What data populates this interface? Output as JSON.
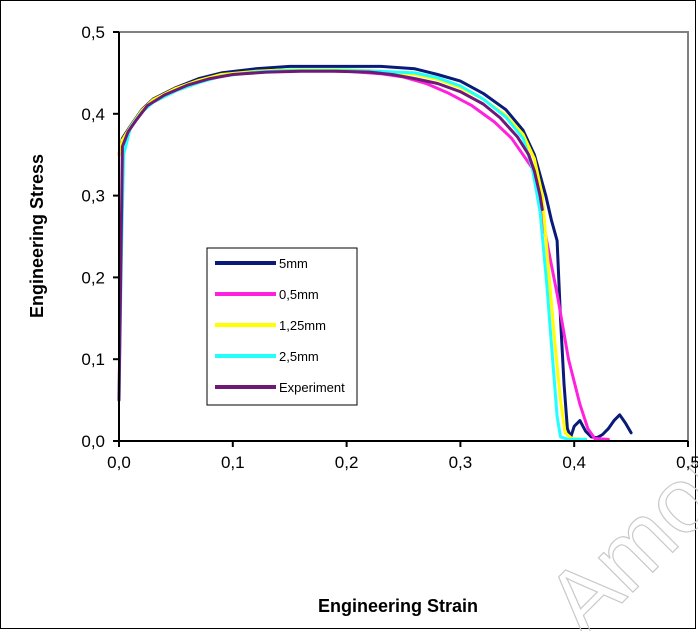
{
  "chart_data": {
    "type": "line",
    "xlabel": "Engineering Strain",
    "ylabel": "Engineering Stress",
    "xlim": [
      0,
      0.5
    ],
    "ylim": [
      0,
      0.5
    ],
    "x_ticks": [
      "0,0",
      "0,1",
      "0,2",
      "0,3",
      "0,4",
      "0,5"
    ],
    "y_ticks": [
      "0,0",
      "0,1",
      "0,2",
      "0,3",
      "0,4",
      "0,5"
    ],
    "grid": false,
    "legend_position": "center-left",
    "watermark": "Amore",
    "series": [
      {
        "name": "5mm",
        "color": "#0a1a78",
        "points": [
          [
            0,
            0.35
          ],
          [
            0.003,
            0.37
          ],
          [
            0.01,
            0.385
          ],
          [
            0.02,
            0.405
          ],
          [
            0.03,
            0.418
          ],
          [
            0.05,
            0.432
          ],
          [
            0.07,
            0.443
          ],
          [
            0.09,
            0.45
          ],
          [
            0.12,
            0.455
          ],
          [
            0.15,
            0.458
          ],
          [
            0.2,
            0.458
          ],
          [
            0.23,
            0.458
          ],
          [
            0.26,
            0.455
          ],
          [
            0.28,
            0.448
          ],
          [
            0.3,
            0.44
          ],
          [
            0.32,
            0.425
          ],
          [
            0.34,
            0.405
          ],
          [
            0.355,
            0.38
          ],
          [
            0.365,
            0.35
          ],
          [
            0.375,
            0.3
          ],
          [
            0.38,
            0.27
          ],
          [
            0.385,
            0.245
          ],
          [
            0.388,
            0.15
          ],
          [
            0.391,
            0.07
          ],
          [
            0.394,
            0.015
          ],
          [
            0.397,
            0.005
          ],
          [
            0.4,
            0.018
          ],
          [
            0.405,
            0.025
          ],
          [
            0.41,
            0.012
          ],
          [
            0.415,
            0.005
          ],
          [
            0.42,
            0.004
          ],
          [
            0.425,
            0.008
          ],
          [
            0.43,
            0.015
          ],
          [
            0.435,
            0.025
          ],
          [
            0.44,
            0.032
          ],
          [
            0.445,
            0.022
          ],
          [
            0.45,
            0.01
          ]
        ]
      },
      {
        "name": "0,5mm",
        "color": "#ff22dd",
        "points": [
          [
            0,
            0.35
          ],
          [
            0.003,
            0.368
          ],
          [
            0.01,
            0.383
          ],
          [
            0.02,
            0.403
          ],
          [
            0.03,
            0.416
          ],
          [
            0.05,
            0.43
          ],
          [
            0.07,
            0.44
          ],
          [
            0.09,
            0.447
          ],
          [
            0.12,
            0.451
          ],
          [
            0.15,
            0.453
          ],
          [
            0.2,
            0.452
          ],
          [
            0.23,
            0.449
          ],
          [
            0.25,
            0.445
          ],
          [
            0.27,
            0.437
          ],
          [
            0.29,
            0.425
          ],
          [
            0.31,
            0.41
          ],
          [
            0.33,
            0.39
          ],
          [
            0.345,
            0.37
          ],
          [
            0.355,
            0.35
          ],
          [
            0.365,
            0.33
          ],
          [
            0.375,
            0.25
          ],
          [
            0.385,
            0.18
          ],
          [
            0.395,
            0.1
          ],
          [
            0.405,
            0.045
          ],
          [
            0.412,
            0.015
          ],
          [
            0.418,
            0.003
          ],
          [
            0.43,
            0.002
          ]
        ]
      },
      {
        "name": "1,25mm",
        "color": "#ffff00",
        "points": [
          [
            0,
            0.35
          ],
          [
            0.003,
            0.368
          ],
          [
            0.01,
            0.384
          ],
          [
            0.02,
            0.404
          ],
          [
            0.03,
            0.417
          ],
          [
            0.05,
            0.431
          ],
          [
            0.07,
            0.441
          ],
          [
            0.09,
            0.448
          ],
          [
            0.12,
            0.452
          ],
          [
            0.15,
            0.454
          ],
          [
            0.2,
            0.454
          ],
          [
            0.23,
            0.452
          ],
          [
            0.26,
            0.448
          ],
          [
            0.28,
            0.442
          ],
          [
            0.3,
            0.432
          ],
          [
            0.32,
            0.418
          ],
          [
            0.34,
            0.398
          ],
          [
            0.355,
            0.375
          ],
          [
            0.365,
            0.345
          ],
          [
            0.372,
            0.3
          ],
          [
            0.378,
            0.2
          ],
          [
            0.383,
            0.12
          ],
          [
            0.388,
            0.05
          ],
          [
            0.392,
            0.01
          ],
          [
            0.398,
            0.003
          ],
          [
            0.41,
            0.002
          ]
        ]
      },
      {
        "name": "2,5mm",
        "color": "#22ffff",
        "points": [
          [
            0,
            0.05
          ],
          [
            0.002,
            0.22
          ],
          [
            0.004,
            0.35
          ],
          [
            0.01,
            0.383
          ],
          [
            0.02,
            0.402
          ],
          [
            0.03,
            0.414
          ],
          [
            0.05,
            0.428
          ],
          [
            0.07,
            0.438
          ],
          [
            0.09,
            0.446
          ],
          [
            0.12,
            0.451
          ],
          [
            0.15,
            0.453
          ],
          [
            0.2,
            0.453
          ],
          [
            0.23,
            0.452
          ],
          [
            0.26,
            0.45
          ],
          [
            0.28,
            0.444
          ],
          [
            0.3,
            0.434
          ],
          [
            0.32,
            0.418
          ],
          [
            0.34,
            0.396
          ],
          [
            0.355,
            0.37
          ],
          [
            0.363,
            0.335
          ],
          [
            0.37,
            0.28
          ],
          [
            0.376,
            0.19
          ],
          [
            0.381,
            0.1
          ],
          [
            0.385,
            0.03
          ],
          [
            0.388,
            0.005
          ],
          [
            0.395,
            0.002
          ],
          [
            0.41,
            0.002
          ]
        ]
      },
      {
        "name": "Experiment",
        "color": "#701878",
        "points": [
          [
            0,
            0.05
          ],
          [
            0.0015,
            0.2
          ],
          [
            0.003,
            0.36
          ],
          [
            0.008,
            0.378
          ],
          [
            0.015,
            0.392
          ],
          [
            0.025,
            0.41
          ],
          [
            0.04,
            0.423
          ],
          [
            0.06,
            0.435
          ],
          [
            0.08,
            0.443
          ],
          [
            0.1,
            0.448
          ],
          [
            0.13,
            0.451
          ],
          [
            0.16,
            0.452
          ],
          [
            0.19,
            0.452
          ],
          [
            0.22,
            0.451
          ],
          [
            0.24,
            0.448
          ],
          [
            0.26,
            0.443
          ],
          [
            0.28,
            0.437
          ],
          [
            0.3,
            0.427
          ],
          [
            0.32,
            0.412
          ],
          [
            0.335,
            0.395
          ],
          [
            0.35,
            0.372
          ],
          [
            0.36,
            0.35
          ],
          [
            0.365,
            0.33
          ],
          [
            0.37,
            0.3
          ],
          [
            0.372,
            0.283
          ]
        ]
      }
    ]
  }
}
